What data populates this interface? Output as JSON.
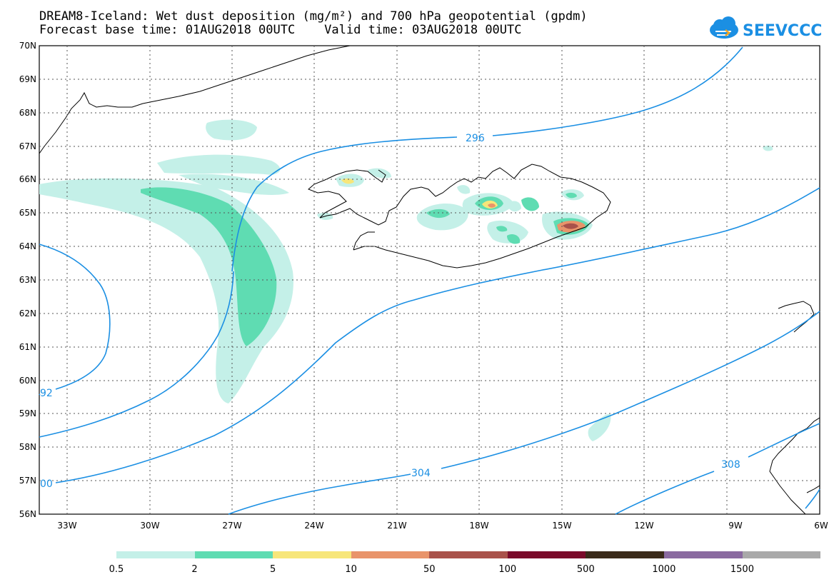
{
  "header": {
    "line1": "DREAM8-Iceland: Wet dust deposition (mg/m²) and 700 hPa geopotential (gpdm)",
    "line2": "Forecast base time: 01AUG2018 00UTC    Valid time: 03AUG2018 00UTC"
  },
  "logo": {
    "text": "SEEVCCC",
    "icon": "cloud-icon",
    "color": "#1b8fe3"
  },
  "axes": {
    "lat_labels": [
      "70N",
      "69N",
      "68N",
      "67N",
      "66N",
      "65N",
      "64N",
      "63N",
      "62N",
      "61N",
      "60N",
      "59N",
      "58N",
      "57N",
      "56N"
    ],
    "lon_labels": [
      "33W",
      "30W",
      "27W",
      "24W",
      "21W",
      "18W",
      "15W",
      "12W",
      "9W",
      "6W"
    ]
  },
  "contours": {
    "color": "#1b8fe3",
    "labels": [
      "296",
      "92",
      "304",
      "308",
      "00"
    ]
  },
  "legend": {
    "colors": [
      "#c4f0e8",
      "#5fdcb2",
      "#f7e67a",
      "#e9946a",
      "#a9524a",
      "#7a0a2a",
      "#3a2a1a",
      "#8a6aa0",
      "#a9a9a9"
    ],
    "labels": [
      "0.5",
      "2",
      "5",
      "10",
      "50",
      "100",
      "500",
      "1000",
      "1500"
    ]
  }
}
